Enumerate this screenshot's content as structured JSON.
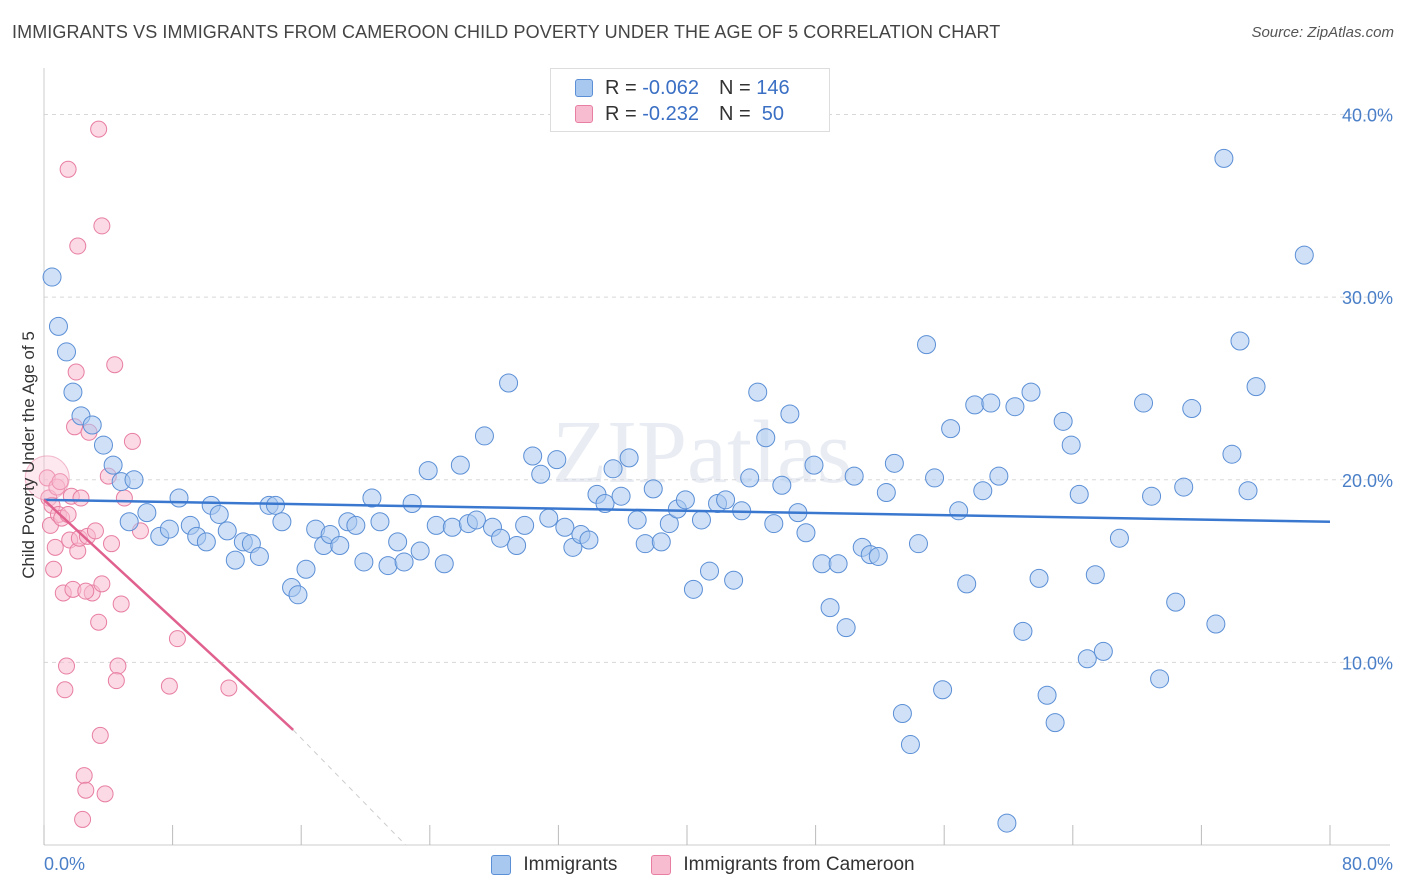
{
  "title": "IMMIGRANTS VS IMMIGRANTS FROM CAMEROON CHILD POVERTY UNDER THE AGE OF 5 CORRELATION CHART",
  "source": "Source: ZipAtlas.com",
  "watermark": "ZIPatlas",
  "legend_top": {
    "rows": [
      {
        "r_label": "R = ",
        "r_value": "-0.062",
        "n_label": "N = ",
        "n_value": "146"
      },
      {
        "r_label": "R = ",
        "r_value": "-0.232",
        "n_label": "N = ",
        "n_value": " 50"
      }
    ]
  },
  "legend_bottom": {
    "items": [
      {
        "label": "Immigrants"
      },
      {
        "label": "Immigrants from Cameroon"
      }
    ]
  },
  "colors": {
    "blue_fill": "#a9c8f0",
    "blue_stroke": "#5b8fd6",
    "blue_line": "#3a78d0",
    "pink_fill": "#f8bcd0",
    "pink_stroke": "#e87ea2",
    "pink_line": "#e0608e",
    "tick_text": "#4a7fc8",
    "grid": "#d8d8d8"
  },
  "chart_data": {
    "type": "scatter",
    "xlabel": "",
    "ylabel": "Child Poverty Under the Age of 5",
    "xlim": [
      0,
      80
    ],
    "ylim": [
      0,
      42
    ],
    "x_tick_labels": [
      {
        "value": 0,
        "label": "0.0%"
      },
      {
        "value": 80,
        "label": "80.0%"
      }
    ],
    "y_tick_labels": [
      {
        "value": 10,
        "label": "10.0%"
      },
      {
        "value": 20,
        "label": "20.0%"
      },
      {
        "value": 30,
        "label": "30.0%"
      },
      {
        "value": 40,
        "label": "40.0%"
      }
    ],
    "grid": true,
    "legend_position": "top-center",
    "series": [
      {
        "name": "Immigrants",
        "trend": {
          "x0": 0,
          "y0": 18.9,
          "x1": 80,
          "y1": 17.7
        },
        "points": [
          [
            0.5,
            31.1
          ],
          [
            0.9,
            28.4
          ],
          [
            1.4,
            27.0
          ],
          [
            1.8,
            24.8
          ],
          [
            2.3,
            23.5
          ],
          [
            3.0,
            23.0
          ],
          [
            3.7,
            21.9
          ],
          [
            4.3,
            20.8
          ],
          [
            4.8,
            19.9
          ],
          [
            5.6,
            20.0
          ],
          [
            5.3,
            17.7
          ],
          [
            6.4,
            18.2
          ],
          [
            7.2,
            16.9
          ],
          [
            7.8,
            17.3
          ],
          [
            8.4,
            19.0
          ],
          [
            9.1,
            17.5
          ],
          [
            9.5,
            16.9
          ],
          [
            10.1,
            16.6
          ],
          [
            10.4,
            18.6
          ],
          [
            10.9,
            18.1
          ],
          [
            11.4,
            17.2
          ],
          [
            11.9,
            15.6
          ],
          [
            12.4,
            16.6
          ],
          [
            12.9,
            16.5
          ],
          [
            13.4,
            15.8
          ],
          [
            14.0,
            18.6
          ],
          [
            14.4,
            18.6
          ],
          [
            14.8,
            17.7
          ],
          [
            15.4,
            14.1
          ],
          [
            15.8,
            13.7
          ],
          [
            16.3,
            15.1
          ],
          [
            16.9,
            17.3
          ],
          [
            17.4,
            16.4
          ],
          [
            17.8,
            17.0
          ],
          [
            18.4,
            16.4
          ],
          [
            18.9,
            17.7
          ],
          [
            19.4,
            17.5
          ],
          [
            19.9,
            15.5
          ],
          [
            20.4,
            19.0
          ],
          [
            20.9,
            17.7
          ],
          [
            21.4,
            15.3
          ],
          [
            22.0,
            16.6
          ],
          [
            22.4,
            15.5
          ],
          [
            22.9,
            18.7
          ],
          [
            23.4,
            16.1
          ],
          [
            23.9,
            20.5
          ],
          [
            24.4,
            17.5
          ],
          [
            24.9,
            15.4
          ],
          [
            25.4,
            17.4
          ],
          [
            25.9,
            20.8
          ],
          [
            26.4,
            17.6
          ],
          [
            26.9,
            17.8
          ],
          [
            27.4,
            22.4
          ],
          [
            27.9,
            17.4
          ],
          [
            28.4,
            16.8
          ],
          [
            28.9,
            25.3
          ],
          [
            29.4,
            16.4
          ],
          [
            29.9,
            17.5
          ],
          [
            30.4,
            21.3
          ],
          [
            30.9,
            20.3
          ],
          [
            31.4,
            17.9
          ],
          [
            31.9,
            21.1
          ],
          [
            32.4,
            17.4
          ],
          [
            32.9,
            16.3
          ],
          [
            33.4,
            17.0
          ],
          [
            33.9,
            16.7
          ],
          [
            34.4,
            19.2
          ],
          [
            34.9,
            18.7
          ],
          [
            35.4,
            20.6
          ],
          [
            35.9,
            19.1
          ],
          [
            36.4,
            21.2
          ],
          [
            36.9,
            17.8
          ],
          [
            37.4,
            16.5
          ],
          [
            37.9,
            19.5
          ],
          [
            38.4,
            16.6
          ],
          [
            38.9,
            17.6
          ],
          [
            39.4,
            18.4
          ],
          [
            39.9,
            18.9
          ],
          [
            40.4,
            14.0
          ],
          [
            40.9,
            17.8
          ],
          [
            41.4,
            15.0
          ],
          [
            41.9,
            18.7
          ],
          [
            42.4,
            18.9
          ],
          [
            42.9,
            14.5
          ],
          [
            43.4,
            18.3
          ],
          [
            43.9,
            20.1
          ],
          [
            44.4,
            24.8
          ],
          [
            44.9,
            22.3
          ],
          [
            45.4,
            17.6
          ],
          [
            45.9,
            19.7
          ],
          [
            46.4,
            23.6
          ],
          [
            46.9,
            18.2
          ],
          [
            47.4,
            17.1
          ],
          [
            47.9,
            20.8
          ],
          [
            48.4,
            15.4
          ],
          [
            48.9,
            13.0
          ],
          [
            49.4,
            15.4
          ],
          [
            49.9,
            11.9
          ],
          [
            50.4,
            20.2
          ],
          [
            50.9,
            16.3
          ],
          [
            51.4,
            15.9
          ],
          [
            51.9,
            15.8
          ],
          [
            52.4,
            19.3
          ],
          [
            52.9,
            20.9
          ],
          [
            53.4,
            7.2
          ],
          [
            53.9,
            5.5
          ],
          [
            54.4,
            16.5
          ],
          [
            54.9,
            27.4
          ],
          [
            55.4,
            20.1
          ],
          [
            55.9,
            8.5
          ],
          [
            56.4,
            22.8
          ],
          [
            56.9,
            18.3
          ],
          [
            57.4,
            14.3
          ],
          [
            57.9,
            24.1
          ],
          [
            58.4,
            19.4
          ],
          [
            58.9,
            24.2
          ],
          [
            59.4,
            20.2
          ],
          [
            59.9,
            1.2
          ],
          [
            60.4,
            24.0
          ],
          [
            60.9,
            11.7
          ],
          [
            61.4,
            24.8
          ],
          [
            61.9,
            14.6
          ],
          [
            62.4,
            8.2
          ],
          [
            62.9,
            6.7
          ],
          [
            63.4,
            23.2
          ],
          [
            63.9,
            21.9
          ],
          [
            64.4,
            19.2
          ],
          [
            64.9,
            10.2
          ],
          [
            65.4,
            14.8
          ],
          [
            65.9,
            10.6
          ],
          [
            66.9,
            16.8
          ],
          [
            68.4,
            24.2
          ],
          [
            68.9,
            19.1
          ],
          [
            69.4,
            9.1
          ],
          [
            70.4,
            13.3
          ],
          [
            70.9,
            19.6
          ],
          [
            71.4,
            23.9
          ],
          [
            72.9,
            12.1
          ],
          [
            73.4,
            37.6
          ],
          [
            73.9,
            21.4
          ],
          [
            74.4,
            27.6
          ],
          [
            74.9,
            19.4
          ],
          [
            75.4,
            25.1
          ],
          [
            78.4,
            32.3
          ]
        ]
      },
      {
        "name": "Immigrants from Cameroon",
        "trend": {
          "x0": 0,
          "y0": 18.9,
          "x1": 15.5,
          "y1": 6.3
        },
        "trend_ext": {
          "x0": 15.5,
          "y0": 6.3,
          "x1": 22.5,
          "y1": 0.0
        },
        "points": [
          [
            0.2,
            20.1
          ],
          [
            0.3,
            19.0
          ],
          [
            0.4,
            17.5
          ],
          [
            0.5,
            18.6
          ],
          [
            0.6,
            15.1
          ],
          [
            0.7,
            16.3
          ],
          [
            0.8,
            19.6
          ],
          [
            0.9,
            18.1
          ],
          [
            1.0,
            19.9
          ],
          [
            1.1,
            17.9
          ],
          [
            1.2,
            13.8
          ],
          [
            1.3,
            8.5
          ],
          [
            1.4,
            9.8
          ],
          [
            1.5,
            18.1
          ],
          [
            1.6,
            16.7
          ],
          [
            1.7,
            19.1
          ],
          [
            1.8,
            14.0
          ],
          [
            1.9,
            22.9
          ],
          [
            2.0,
            25.9
          ],
          [
            2.1,
            16.1
          ],
          [
            2.2,
            16.8
          ],
          [
            2.3,
            19.0
          ],
          [
            2.4,
            1.4
          ],
          [
            2.5,
            3.8
          ],
          [
            2.6,
            3.0
          ],
          [
            2.7,
            16.9
          ],
          [
            2.8,
            22.6
          ],
          [
            3.0,
            13.8
          ],
          [
            3.2,
            17.2
          ],
          [
            3.4,
            12.2
          ],
          [
            3.5,
            6.0
          ],
          [
            3.6,
            14.3
          ],
          [
            3.8,
            2.8
          ],
          [
            4.0,
            20.2
          ],
          [
            4.2,
            16.5
          ],
          [
            4.4,
            26.3
          ],
          [
            4.6,
            9.8
          ],
          [
            4.8,
            13.2
          ],
          [
            5.0,
            19.0
          ],
          [
            5.5,
            22.1
          ],
          [
            6.0,
            17.2
          ],
          [
            7.8,
            8.7
          ],
          [
            8.3,
            11.3
          ],
          [
            11.5,
            8.6
          ],
          [
            1.5,
            37.0
          ],
          [
            3.4,
            39.2
          ],
          [
            3.6,
            33.9
          ],
          [
            2.1,
            32.8
          ],
          [
            4.5,
            9.0
          ],
          [
            2.6,
            13.9
          ]
        ]
      }
    ]
  }
}
